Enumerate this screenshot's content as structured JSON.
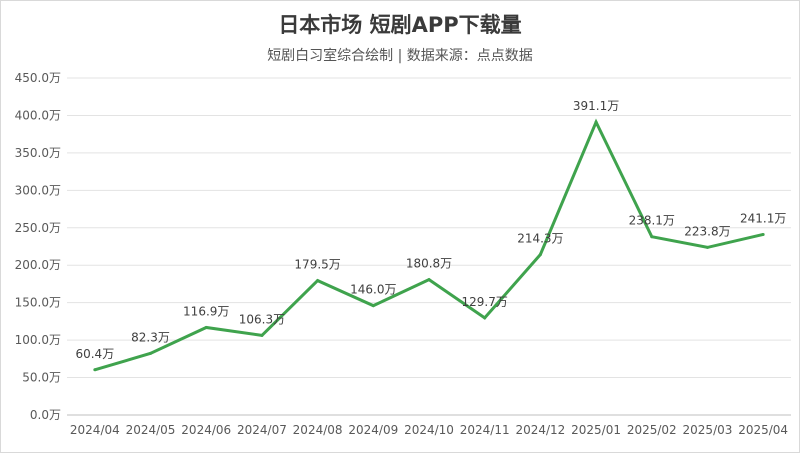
{
  "chart_data": {
    "type": "line",
    "title": "日本市场 短剧APP下载量",
    "subtitle": "短剧白习室综合绘制 | 数据来源：点点数据",
    "categories": [
      "2024/04",
      "2024/05",
      "2024/06",
      "2024/07",
      "2024/08",
      "2024/09",
      "2024/10",
      "2024/11",
      "2024/12",
      "2025/01",
      "2025/02",
      "2025/03",
      "2025/04"
    ],
    "series": [
      {
        "values": [
          60.4,
          82.3,
          116.9,
          106.3,
          179.5,
          146.0,
          180.8,
          129.7,
          214.3,
          391.1,
          238.1,
          223.8,
          241.1
        ],
        "labels": [
          "60.4万",
          "82.3万",
          "116.9万",
          "106.3万",
          "179.5万",
          "146.0万",
          "180.8万",
          "129.7万",
          "214.3万",
          "391.1万",
          "238.1万",
          "223.8万",
          "241.1万"
        ],
        "color": "#3fa34d"
      }
    ],
    "y_ticks": [
      0,
      50,
      100,
      150,
      200,
      250,
      300,
      350,
      400,
      450
    ],
    "y_tick_labels": [
      "0.0万",
      "50.0万",
      "100.0万",
      "150.0万",
      "200.0万",
      "250.0万",
      "300.0万",
      "350.0万",
      "400.0万",
      "450.0万"
    ],
    "ylim": [
      0,
      450
    ],
    "grid": true,
    "legend": "none"
  }
}
